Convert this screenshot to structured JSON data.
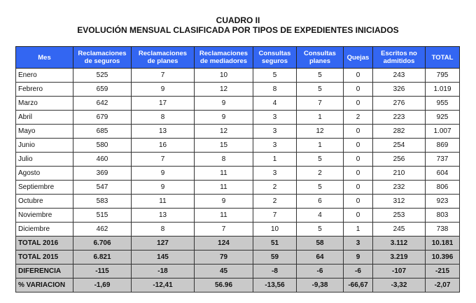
{
  "title": "CUADRO II",
  "subtitle": "EVOLUCIÓN MENSUAL CLASIFICADA POR TIPOS DE EXPEDIENTES INICIADOS",
  "headers": [
    [
      "Mes"
    ],
    [
      "Reclamaciones",
      "de seguros"
    ],
    [
      "Reclamaciones",
      "de planes"
    ],
    [
      "Reclamaciones",
      "de mediadores"
    ],
    [
      "Consultas",
      "seguros"
    ],
    [
      "Consultas",
      "planes"
    ],
    [
      "Quejas"
    ],
    [
      "Escritos no",
      "admitidos"
    ],
    [
      "TOTAL"
    ]
  ],
  "rows": [
    [
      "Enero",
      "525",
      "7",
      "10",
      "5",
      "5",
      "0",
      "243",
      "795"
    ],
    [
      "Febrero",
      "659",
      "9",
      "12",
      "8",
      "5",
      "0",
      "326",
      "1.019"
    ],
    [
      "Marzo",
      "642",
      "17",
      "9",
      "4",
      "7",
      "0",
      "276",
      "955"
    ],
    [
      "Abril",
      "679",
      "8",
      "9",
      "3",
      "1",
      "2",
      "223",
      "925"
    ],
    [
      "Mayo",
      "685",
      "13",
      "12",
      "3",
      "12",
      "0",
      "282",
      "1.007"
    ],
    [
      "Junio",
      "580",
      "16",
      "15",
      "3",
      "1",
      "0",
      "254",
      "869"
    ],
    [
      "Julio",
      "460",
      "7",
      "8",
      "1",
      "5",
      "0",
      "256",
      "737"
    ],
    [
      "Agosto",
      "369",
      "9",
      "11",
      "3",
      "2",
      "0",
      "210",
      "604"
    ],
    [
      "Septiembre",
      "547",
      "9",
      "11",
      "2",
      "5",
      "0",
      "232",
      "806"
    ],
    [
      "Octubre",
      "583",
      "11",
      "9",
      "2",
      "6",
      "0",
      "312",
      "923"
    ],
    [
      "Noviembre",
      "515",
      "13",
      "11",
      "7",
      "4",
      "0",
      "253",
      "803"
    ],
    [
      "Diciembre",
      "462",
      "8",
      "7",
      "10",
      "5",
      "1",
      "245",
      "738"
    ]
  ],
  "totals": [
    [
      "TOTAL 2016",
      "6.706",
      "127",
      "124",
      "51",
      "58",
      "3",
      "3.112",
      "10.181"
    ],
    [
      "TOTAL 2015",
      "6.821",
      "145",
      "79",
      "59",
      "64",
      "9",
      "3.219",
      "10.396"
    ],
    [
      "DIFERENCIA",
      "-115",
      "-18",
      "45",
      "-8",
      "-6",
      "-6",
      "-107",
      "-215"
    ],
    [
      "% VARIACION",
      "-1,69",
      "-12,41",
      "56.96",
      "-13,56",
      "-9,38",
      "-66,67",
      "-3,32",
      "-2,07"
    ]
  ],
  "colors": {
    "header": "#3366f2",
    "totals": "#c9c9c9"
  }
}
